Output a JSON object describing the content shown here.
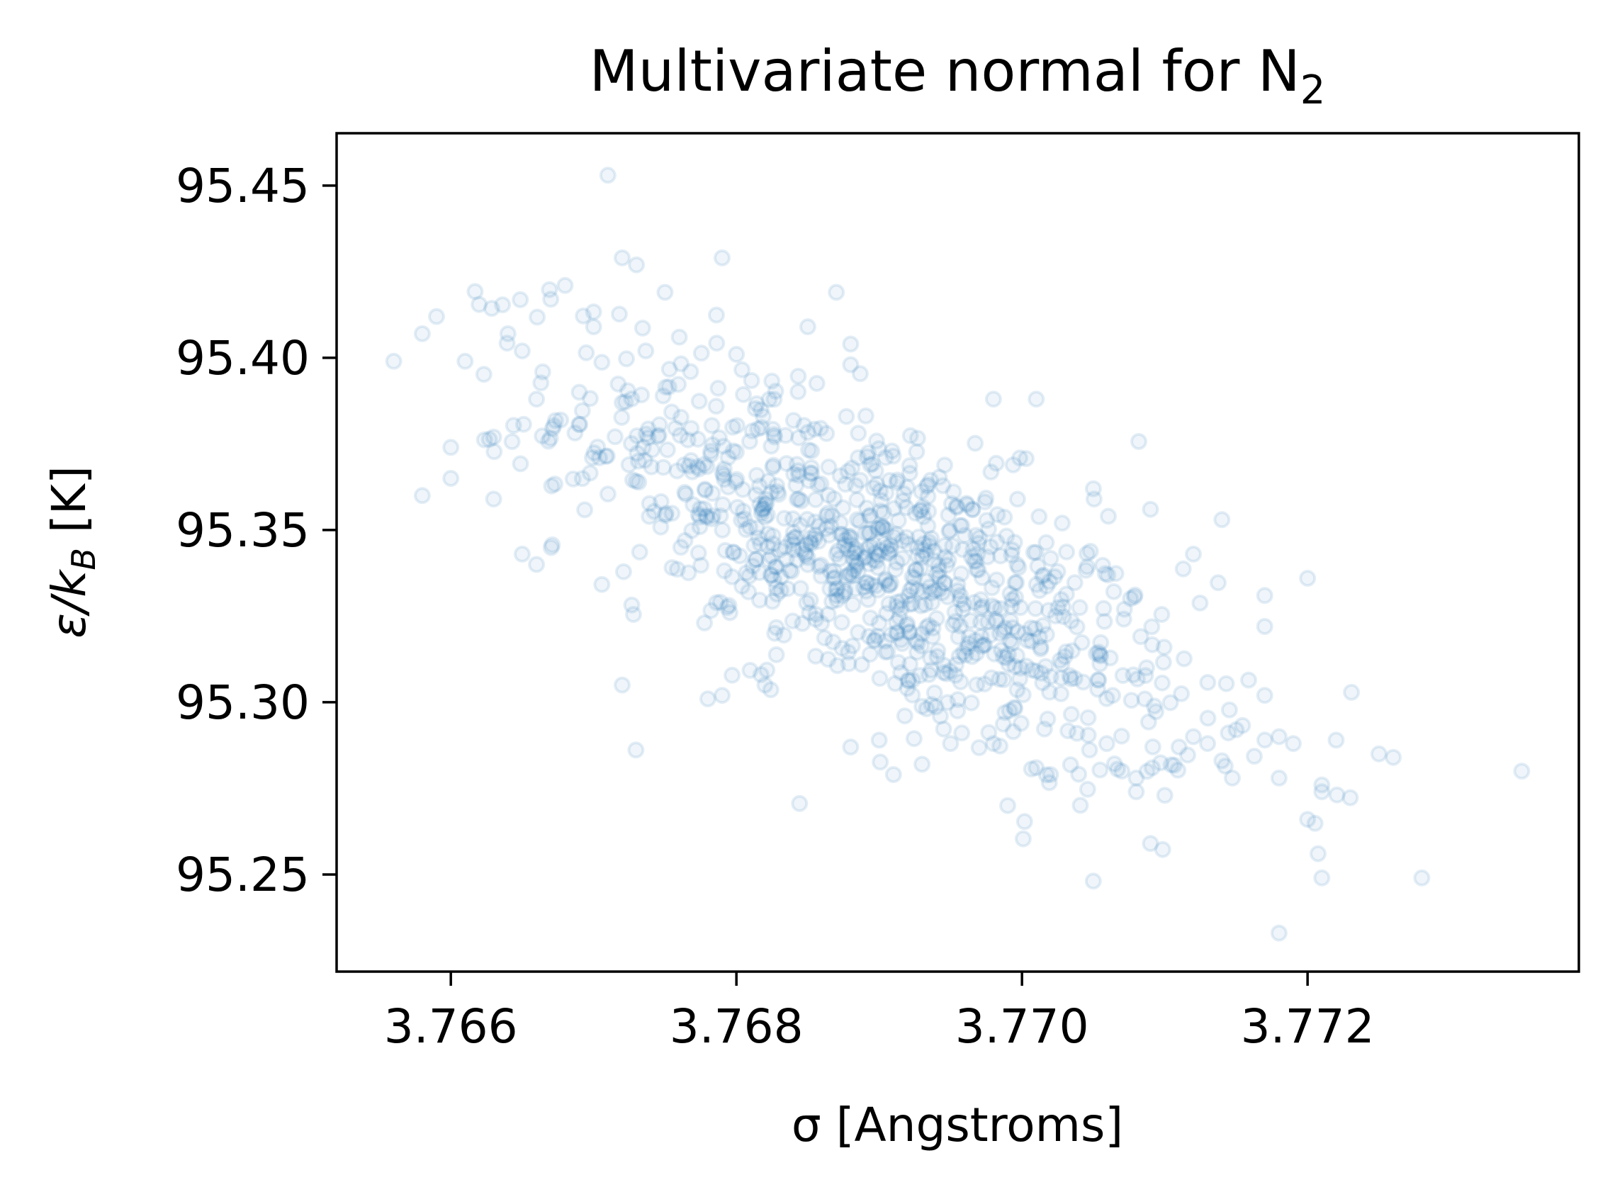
{
  "chart_data": {
    "type": "scatter",
    "title": "Multivariate normal for N",
    "title_subscript": "2",
    "xlabel": "σ [Angstroms]",
    "ylabel_main": "ε/k",
    "ylabel_subscript": "B",
    "ylabel_unit": " [K]",
    "xlim": [
      3.7652,
      3.7739
    ],
    "ylim": [
      95.2218,
      95.4652
    ],
    "xticks": [
      3.766,
      3.768,
      3.77,
      3.772
    ],
    "xtick_labels": [
      "3.766",
      "3.768",
      "3.770",
      "3.772"
    ],
    "yticks": [
      95.25,
      95.3,
      95.35,
      95.4,
      95.45
    ],
    "ytick_labels": [
      "95.25",
      "95.30",
      "95.35",
      "95.40",
      "95.45"
    ],
    "grid": false,
    "legend": "none",
    "marker": "open-circle",
    "marker_color": "#1f77b4",
    "marker_alpha": 0.12,
    "points_note": "≈1000 samples; outliers listed explicitly, bulk summarized by distribution",
    "distribution": {
      "mean_sigma": 3.769,
      "mean_eps": 95.34,
      "std_sigma": 0.0011,
      "std_eps": 0.03,
      "correlation": -0.72,
      "n_samples": 1000
    },
    "points": [
      [
        3.7656,
        95.399
      ],
      [
        3.7658,
        95.407
      ],
      [
        3.7659,
        95.412
      ],
      [
        3.766,
        95.374
      ],
      [
        3.766,
        95.365
      ],
      [
        3.7658,
        95.36
      ],
      [
        3.7661,
        95.399
      ],
      [
        3.7663,
        95.377
      ],
      [
        3.7664,
        95.407
      ],
      [
        3.7663,
        95.359
      ],
      [
        3.7665,
        95.402
      ],
      [
        3.7666,
        95.388
      ],
      [
        3.7665,
        95.343
      ],
      [
        3.7666,
        95.34
      ],
      [
        3.7668,
        95.421
      ],
      [
        3.7667,
        95.417
      ],
      [
        3.7669,
        95.39
      ],
      [
        3.767,
        95.409
      ],
      [
        3.7671,
        95.453
      ],
      [
        3.7672,
        95.429
      ],
      [
        3.7673,
        95.427
      ],
      [
        3.7672,
        95.387
      ],
      [
        3.7675,
        95.419
      ],
      [
        3.7672,
        95.305
      ],
      [
        3.7676,
        95.406
      ],
      [
        3.7679,
        95.429
      ],
      [
        3.7678,
        95.301
      ],
      [
        3.7679,
        95.302
      ],
      [
        3.768,
        95.401
      ],
      [
        3.7682,
        95.305
      ],
      [
        3.7685,
        95.409
      ],
      [
        3.7687,
        95.419
      ],
      [
        3.7688,
        95.404
      ],
      [
        3.7688,
        95.398
      ],
      [
        3.7688,
        95.287
      ],
      [
        3.769,
        95.289
      ],
      [
        3.7691,
        95.279
      ],
      [
        3.7693,
        95.282
      ],
      [
        3.7695,
        95.288
      ],
      [
        3.7699,
        95.27
      ],
      [
        3.7698,
        95.388
      ],
      [
        3.7701,
        95.388
      ],
      [
        3.7701,
        95.281
      ],
      [
        3.7702,
        95.279
      ],
      [
        3.7705,
        95.362
      ],
      [
        3.7707,
        95.28
      ],
      [
        3.7708,
        95.274
      ],
      [
        3.7708,
        95.278
      ],
      [
        3.7709,
        95.259
      ],
      [
        3.771,
        95.273
      ],
      [
        3.7709,
        95.356
      ],
      [
        3.7712,
        95.343
      ],
      [
        3.7711,
        95.287
      ],
      [
        3.7712,
        95.29
      ],
      [
        3.7713,
        95.288
      ],
      [
        3.7714,
        95.283
      ],
      [
        3.7714,
        95.353
      ],
      [
        3.7715,
        95.292
      ],
      [
        3.7717,
        95.322
      ],
      [
        3.7717,
        95.331
      ],
      [
        3.7717,
        95.302
      ],
      [
        3.7718,
        95.29
      ],
      [
        3.7718,
        95.278
      ],
      [
        3.7719,
        95.288
      ],
      [
        3.772,
        95.336
      ],
      [
        3.772,
        95.266
      ],
      [
        3.7721,
        95.249
      ],
      [
        3.7721,
        95.274
      ],
      [
        3.7721,
        95.276
      ],
      [
        3.7722,
        95.289
      ],
      [
        3.7725,
        95.285
      ],
      [
        3.7726,
        95.284
      ],
      [
        3.7728,
        95.249
      ],
      [
        3.7718,
        95.233
      ],
      [
        3.7735,
        95.28
      ]
    ]
  }
}
